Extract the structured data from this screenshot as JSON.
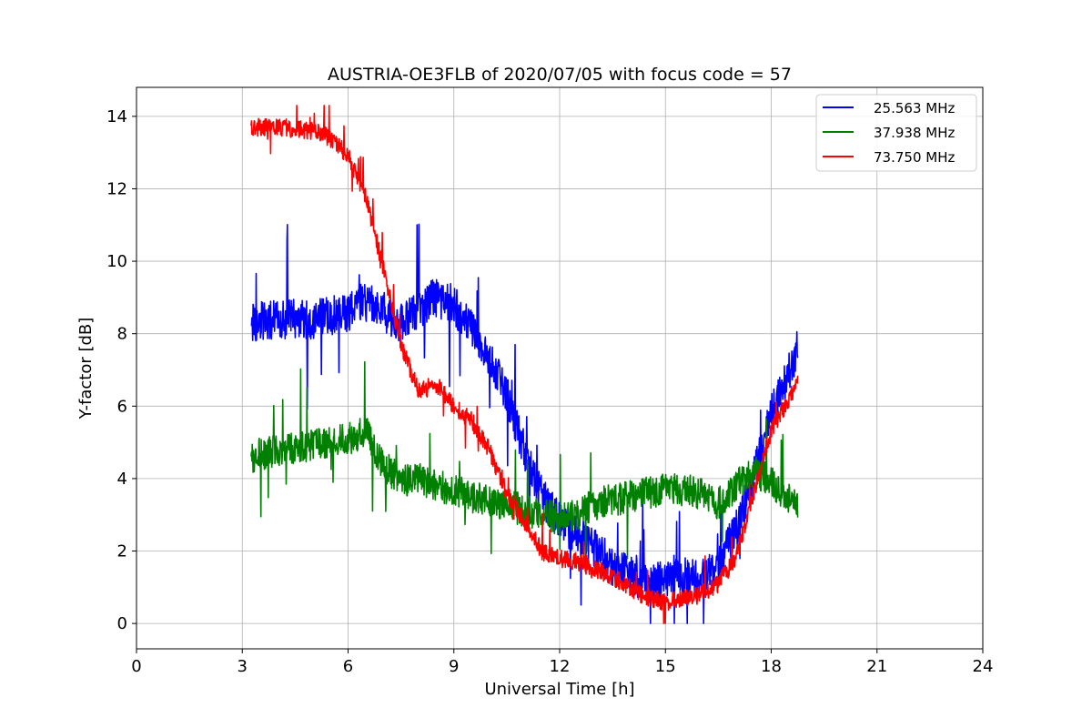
{
  "chart_data": {
    "type": "line",
    "title": "AUSTRIA-OE3FLB of 2020/07/05 with focus code = 57",
    "xlabel": "Universal Time [h]",
    "ylabel": "Y-factor [dB]",
    "xlim": [
      0,
      24
    ],
    "ylim": [
      -0.7,
      14.8
    ],
    "xticks": [
      0,
      3,
      6,
      9,
      12,
      15,
      18,
      21,
      24
    ],
    "yticks": [
      0,
      2,
      4,
      6,
      8,
      10,
      12,
      14
    ],
    "grid": true,
    "legend_position": "top-right",
    "series": [
      {
        "name": "25.563 MHz",
        "color": "#0000ff",
        "noise": 0.55,
        "points": [
          [
            3.25,
            8.3
          ],
          [
            4.0,
            8.4
          ],
          [
            5.0,
            8.4
          ],
          [
            6.0,
            8.6
          ],
          [
            6.5,
            8.9
          ],
          [
            7.0,
            8.6
          ],
          [
            7.5,
            8.3
          ],
          [
            8.0,
            8.7
          ],
          [
            8.5,
            9.0
          ],
          [
            9.0,
            8.8
          ],
          [
            9.5,
            8.1
          ],
          [
            10.0,
            7.3
          ],
          [
            10.5,
            6.3
          ],
          [
            11.0,
            4.8
          ],
          [
            11.5,
            3.5
          ],
          [
            12.0,
            2.8
          ],
          [
            12.5,
            2.4
          ],
          [
            13.0,
            2.1
          ],
          [
            13.5,
            1.6
          ],
          [
            14.0,
            1.3
          ],
          [
            14.5,
            1.1
          ],
          [
            15.0,
            1.2
          ],
          [
            15.5,
            1.3
          ],
          [
            16.0,
            1.2
          ],
          [
            16.5,
            1.6
          ],
          [
            17.0,
            2.6
          ],
          [
            17.5,
            4.0
          ],
          [
            18.0,
            5.8
          ],
          [
            18.5,
            7.0
          ],
          [
            18.75,
            7.6
          ]
        ]
      },
      {
        "name": "37.938 MHz",
        "color": "#008000",
        "noise": 0.45,
        "points": [
          [
            3.25,
            4.6
          ],
          [
            4.0,
            4.8
          ],
          [
            5.0,
            4.9
          ],
          [
            6.0,
            5.1
          ],
          [
            6.5,
            5.3
          ],
          [
            7.0,
            4.4
          ],
          [
            7.5,
            3.9
          ],
          [
            8.0,
            4.0
          ],
          [
            8.5,
            3.8
          ],
          [
            9.0,
            3.7
          ],
          [
            9.5,
            3.5
          ],
          [
            10.0,
            3.4
          ],
          [
            10.5,
            3.3
          ],
          [
            11.0,
            3.1
          ],
          [
            11.5,
            3.0
          ],
          [
            12.0,
            2.9
          ],
          [
            12.5,
            3.0
          ],
          [
            13.0,
            3.3
          ],
          [
            13.5,
            3.4
          ],
          [
            14.0,
            3.5
          ],
          [
            14.5,
            3.6
          ],
          [
            15.0,
            3.7
          ],
          [
            15.5,
            3.7
          ],
          [
            16.0,
            3.6
          ],
          [
            16.5,
            3.3
          ],
          [
            17.0,
            3.8
          ],
          [
            17.5,
            4.2
          ],
          [
            18.0,
            3.9
          ],
          [
            18.5,
            3.4
          ],
          [
            18.75,
            3.3
          ]
        ]
      },
      {
        "name": "73.750 MHz",
        "color": "#ff0000",
        "noise": 0.25,
        "points": [
          [
            3.25,
            13.7
          ],
          [
            4.0,
            13.7
          ],
          [
            5.0,
            13.6
          ],
          [
            5.5,
            13.4
          ],
          [
            6.0,
            12.9
          ],
          [
            6.5,
            11.8
          ],
          [
            7.0,
            9.8
          ],
          [
            7.5,
            7.7
          ],
          [
            8.0,
            6.4
          ],
          [
            8.5,
            6.6
          ],
          [
            9.0,
            6.0
          ],
          [
            9.5,
            5.6
          ],
          [
            10.0,
            4.8
          ],
          [
            10.5,
            3.6
          ],
          [
            11.0,
            2.8
          ],
          [
            11.5,
            2.0
          ],
          [
            12.0,
            1.8
          ],
          [
            12.5,
            1.7
          ],
          [
            13.0,
            1.5
          ],
          [
            13.5,
            1.3
          ],
          [
            14.0,
            1.0
          ],
          [
            14.5,
            0.7
          ],
          [
            15.0,
            0.6
          ],
          [
            15.5,
            0.7
          ],
          [
            16.0,
            0.8
          ],
          [
            16.5,
            1.1
          ],
          [
            17.0,
            1.8
          ],
          [
            17.5,
            3.6
          ],
          [
            18.0,
            5.3
          ],
          [
            18.5,
            6.2
          ],
          [
            18.75,
            6.6
          ]
        ]
      }
    ]
  }
}
